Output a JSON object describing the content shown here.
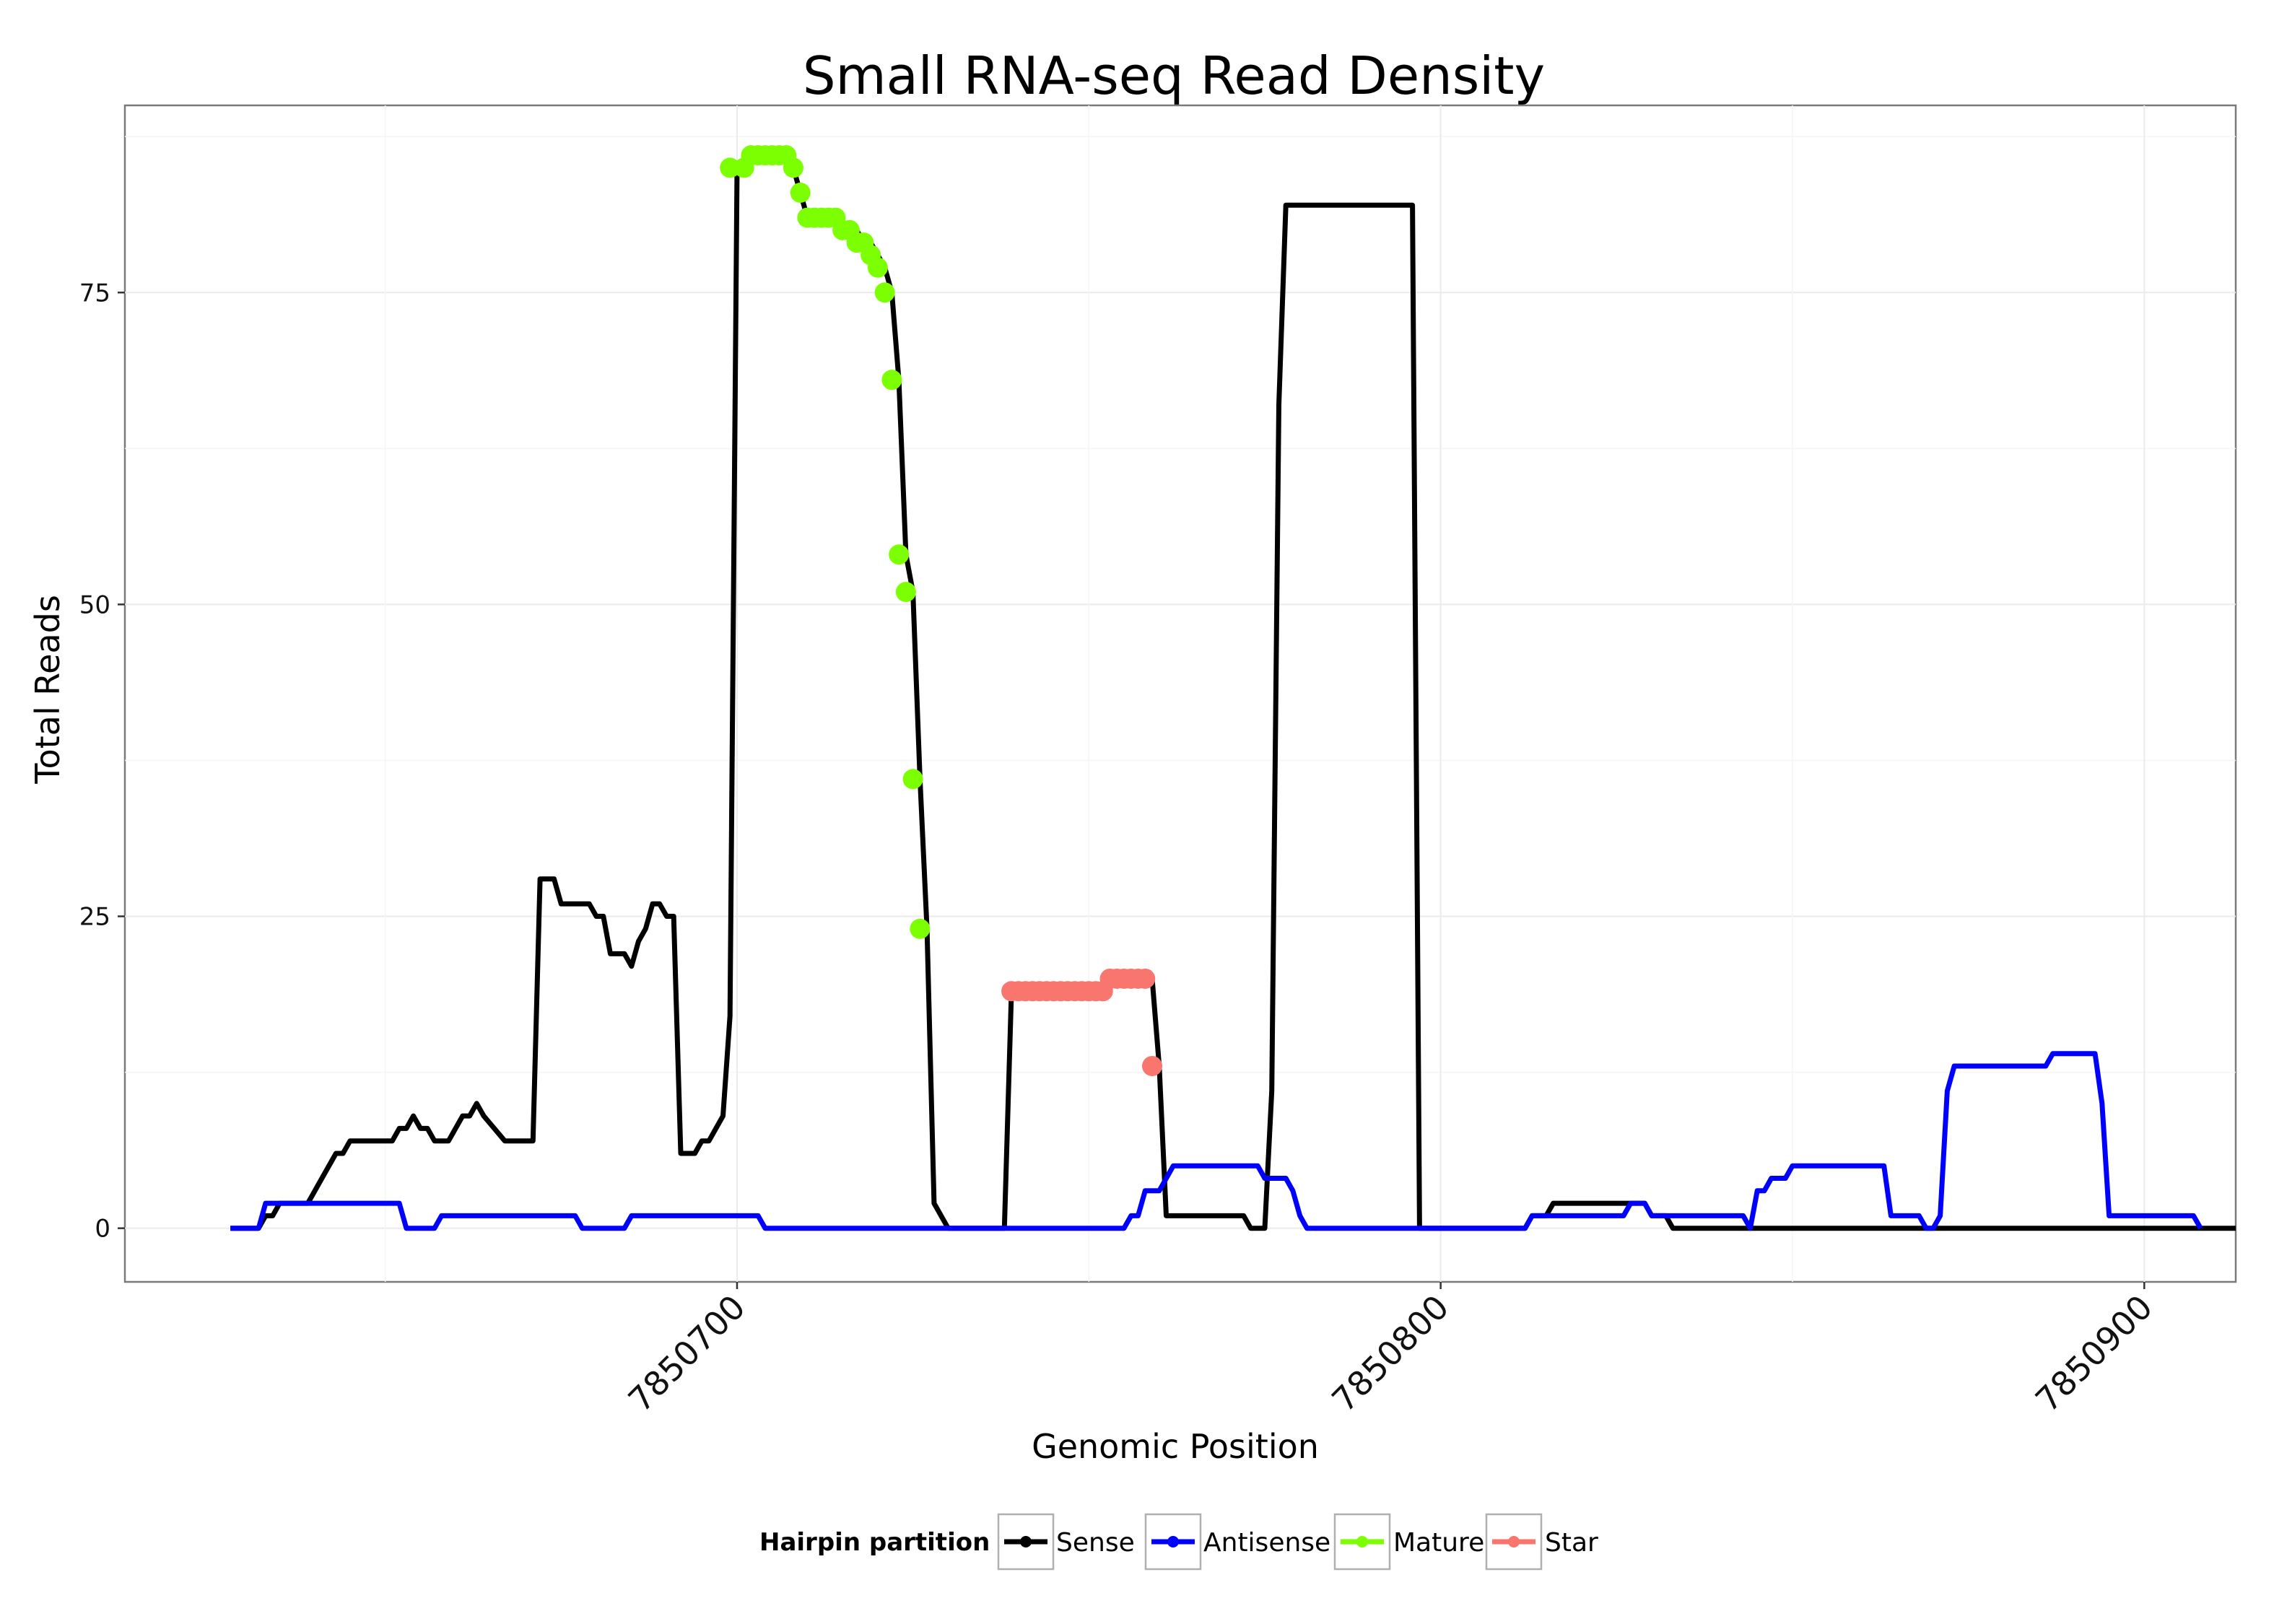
{
  "chart_data": {
    "type": "line",
    "title": "Small RNA-seq Read Density",
    "xlabel": "Genomic Position",
    "ylabel": "Total Reads",
    "xlim": [
      7850613,
      7850913
    ],
    "ylim": [
      -4.3,
      90
    ],
    "x_ticks": [
      7850700,
      7850800,
      7850900
    ],
    "x_tick_labels": [
      "7850700",
      "7850800",
      "7850900"
    ],
    "y_ticks": [
      0,
      25,
      50,
      75
    ],
    "y_tick_labels": [
      "0",
      "25",
      "50",
      "75"
    ],
    "grid": true,
    "legend_position": "bottom",
    "legend_title": "Hairpin partition",
    "series": [
      {
        "name": "Sense",
        "color": "#000000",
        "markers": false,
        "points": [
          [
            7850628,
            0
          ],
          [
            7850632,
            0
          ],
          [
            7850633,
            1
          ],
          [
            7850634,
            1
          ],
          [
            7850635,
            2
          ],
          [
            7850639,
            2
          ],
          [
            7850641,
            4
          ],
          [
            7850643,
            6
          ],
          [
            7850644,
            6
          ],
          [
            7850645,
            7
          ],
          [
            7850648,
            7
          ],
          [
            7850651,
            7
          ],
          [
            7850652,
            8
          ],
          [
            7850653,
            8
          ],
          [
            7850654,
            9
          ],
          [
            7850655,
            8
          ],
          [
            7850656,
            8
          ],
          [
            7850657,
            7
          ],
          [
            7850659,
            7
          ],
          [
            7850661,
            9
          ],
          [
            7850662,
            9
          ],
          [
            7850663,
            10
          ],
          [
            7850664,
            9
          ],
          [
            7850667,
            7
          ],
          [
            7850671,
            7
          ],
          [
            7850672,
            28
          ],
          [
            7850674,
            28
          ],
          [
            7850675,
            26
          ],
          [
            7850679,
            26
          ],
          [
            7850680,
            25
          ],
          [
            7850681,
            25
          ],
          [
            7850682,
            22
          ],
          [
            7850684,
            22
          ],
          [
            7850685,
            21
          ],
          [
            7850686,
            23
          ],
          [
            7850687,
            24
          ],
          [
            7850688,
            26
          ],
          [
            7850689,
            26
          ],
          [
            7850690,
            25
          ],
          [
            7850691,
            25
          ],
          [
            7850692,
            6
          ],
          [
            7850694,
            6
          ],
          [
            7850695,
            7
          ],
          [
            7850696,
            7
          ],
          [
            7850698,
            9
          ],
          [
            7850699,
            17
          ],
          [
            7850700,
            85
          ],
          [
            7850701,
            85
          ],
          [
            7850702,
            86
          ],
          [
            7850707,
            86
          ],
          [
            7850708,
            85
          ],
          [
            7850709,
            83
          ],
          [
            7850710,
            81
          ],
          [
            7850714,
            81
          ],
          [
            7850715,
            80
          ],
          [
            7850717,
            80
          ],
          [
            7850718,
            79
          ],
          [
            7850719,
            79
          ],
          [
            7850720,
            78
          ],
          [
            7850721,
            77
          ],
          [
            7850722,
            75
          ],
          [
            7850723,
            68
          ],
          [
            7850724,
            54
          ],
          [
            7850725,
            51
          ],
          [
            7850726,
            36
          ],
          [
            7850727,
            24
          ],
          [
            7850728,
            2
          ],
          [
            7850730,
            0
          ],
          [
            7850738,
            0
          ],
          [
            7850739,
            19
          ],
          [
            7850752,
            19
          ],
          [
            7850753,
            20
          ],
          [
            7850759,
            20
          ],
          [
            7850760,
            13
          ],
          [
            7850761,
            1
          ],
          [
            7850772,
            1
          ],
          [
            7850773,
            0
          ],
          [
            7850775,
            0
          ],
          [
            7850776,
            11
          ],
          [
            7850777,
            66
          ],
          [
            7850778,
            82
          ],
          [
            7850796,
            82
          ],
          [
            7850797,
            0
          ],
          [
            7850812,
            0
          ],
          [
            7850813,
            1
          ],
          [
            7850815,
            1
          ],
          [
            7850816,
            2
          ],
          [
            7850829,
            2
          ],
          [
            7850830,
            1
          ],
          [
            7850832,
            1
          ],
          [
            7850833,
            0
          ],
          [
            7850913,
            0
          ]
        ]
      },
      {
        "name": "Antisense",
        "color": "#0000ff",
        "markers": false,
        "points": [
          [
            7850628,
            0
          ],
          [
            7850632,
            0
          ],
          [
            7850633,
            2
          ],
          [
            7850652,
            2
          ],
          [
            7850653,
            0
          ],
          [
            7850657,
            0
          ],
          [
            7850658,
            1
          ],
          [
            7850677,
            1
          ],
          [
            7850678,
            0
          ],
          [
            7850684,
            0
          ],
          [
            7850685,
            1
          ],
          [
            7850703,
            1
          ],
          [
            7850704,
            0
          ],
          [
            7850730,
            0
          ],
          [
            7850739,
            0
          ],
          [
            7850755,
            0
          ],
          [
            7850756,
            1
          ],
          [
            7850757,
            1
          ],
          [
            7850758,
            3
          ],
          [
            7850760,
            3
          ],
          [
            7850762,
            5
          ],
          [
            7850774,
            5
          ],
          [
            7850775,
            4
          ],
          [
            7850778,
            4
          ],
          [
            7850779,
            3
          ],
          [
            7850780,
            1
          ],
          [
            7850781,
            0
          ],
          [
            7850797,
            0
          ],
          [
            7850812,
            0
          ],
          [
            7850813,
            1
          ],
          [
            7850826,
            1
          ],
          [
            7850827,
            2
          ],
          [
            7850829,
            2
          ],
          [
            7850830,
            1
          ],
          [
            7850843,
            1
          ],
          [
            7850844,
            0
          ],
          [
            7850845,
            3
          ],
          [
            7850846,
            3
          ],
          [
            7850847,
            4
          ],
          [
            7850849,
            4
          ],
          [
            7850850,
            5
          ],
          [
            7850863,
            5
          ],
          [
            7850864,
            1
          ],
          [
            7850868,
            1
          ],
          [
            7850869,
            0
          ],
          [
            7850870,
            0
          ],
          [
            7850871,
            1
          ],
          [
            7850872,
            11
          ],
          [
            7850873,
            13
          ],
          [
            7850886,
            13
          ],
          [
            7850887,
            14
          ],
          [
            7850893,
            14
          ],
          [
            7850894,
            10
          ],
          [
            7850895,
            1
          ],
          [
            7850906,
            1
          ],
          [
            7850907,
            1
          ],
          [
            7850908,
            0
          ]
        ]
      },
      {
        "name": "Mature",
        "color": "#7cff00",
        "markers": true,
        "points": [
          [
            7850699,
            85
          ],
          [
            7850701,
            85
          ],
          [
            7850702,
            86
          ],
          [
            7850703,
            86
          ],
          [
            7850704,
            86
          ],
          [
            7850705,
            86
          ],
          [
            7850706,
            86
          ],
          [
            7850707,
            86
          ],
          [
            7850708,
            85
          ],
          [
            7850709,
            83
          ],
          [
            7850710,
            81
          ],
          [
            7850711,
            81
          ],
          [
            7850712,
            81
          ],
          [
            7850713,
            81
          ],
          [
            7850714,
            81
          ],
          [
            7850715,
            80
          ],
          [
            7850716,
            80
          ],
          [
            7850717,
            79
          ],
          [
            7850718,
            79
          ],
          [
            7850719,
            78
          ],
          [
            7850720,
            77
          ],
          [
            7850721,
            75
          ],
          [
            7850722,
            68
          ],
          [
            7850723,
            54
          ],
          [
            7850724,
            51
          ],
          [
            7850725,
            36
          ],
          [
            7850726,
            24
          ]
        ]
      },
      {
        "name": "Star",
        "color": "#f8766d",
        "markers": true,
        "points": [
          [
            7850739,
            19
          ],
          [
            7850740,
            19
          ],
          [
            7850741,
            19
          ],
          [
            7850742,
            19
          ],
          [
            7850743,
            19
          ],
          [
            7850744,
            19
          ],
          [
            7850745,
            19
          ],
          [
            7850746,
            19
          ],
          [
            7850747,
            19
          ],
          [
            7850748,
            19
          ],
          [
            7850749,
            19
          ],
          [
            7850750,
            19
          ],
          [
            7850751,
            19
          ],
          [
            7850752,
            19
          ],
          [
            7850753,
            20
          ],
          [
            7850754,
            20
          ],
          [
            7850755,
            20
          ],
          [
            7850756,
            20
          ],
          [
            7850757,
            20
          ],
          [
            7850758,
            20
          ],
          [
            7850759,
            13
          ]
        ]
      }
    ]
  }
}
